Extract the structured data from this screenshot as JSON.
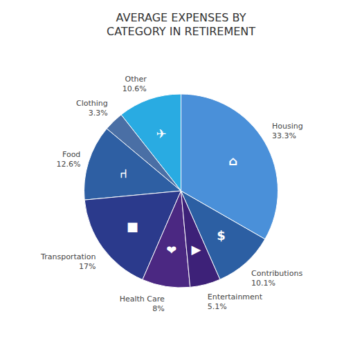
{
  "chart_data": {
    "type": "pie",
    "title": "AVERAGE EXPENSES BY\nCATEGORY IN RETIREMENT",
    "categories": [
      "Other",
      "Clothing",
      "Food",
      "Transportation",
      "Health Care",
      "Entertainment",
      "Contributions",
      "Housing"
    ],
    "values": [
      10.6,
      3.3,
      12.6,
      17.0,
      8.0,
      5.1,
      10.1,
      33.3
    ],
    "value_labels": [
      "10.6%",
      "3.3%",
      "12.6%",
      "17%",
      "8%",
      "5.1%",
      "10.1%",
      "33.3%"
    ],
    "colors": [
      "#29ABE2",
      "#4A6FA5",
      "#2E5FA3",
      "#2B3A8C",
      "#4B2882",
      "#3D2178",
      "#2C5FA3",
      "#4A90D9"
    ],
    "icons": [
      "✈",
      null,
      "⑁",
      "■",
      "❤",
      "▶",
      "$",
      "⌂"
    ],
    "data_labels": true
  }
}
